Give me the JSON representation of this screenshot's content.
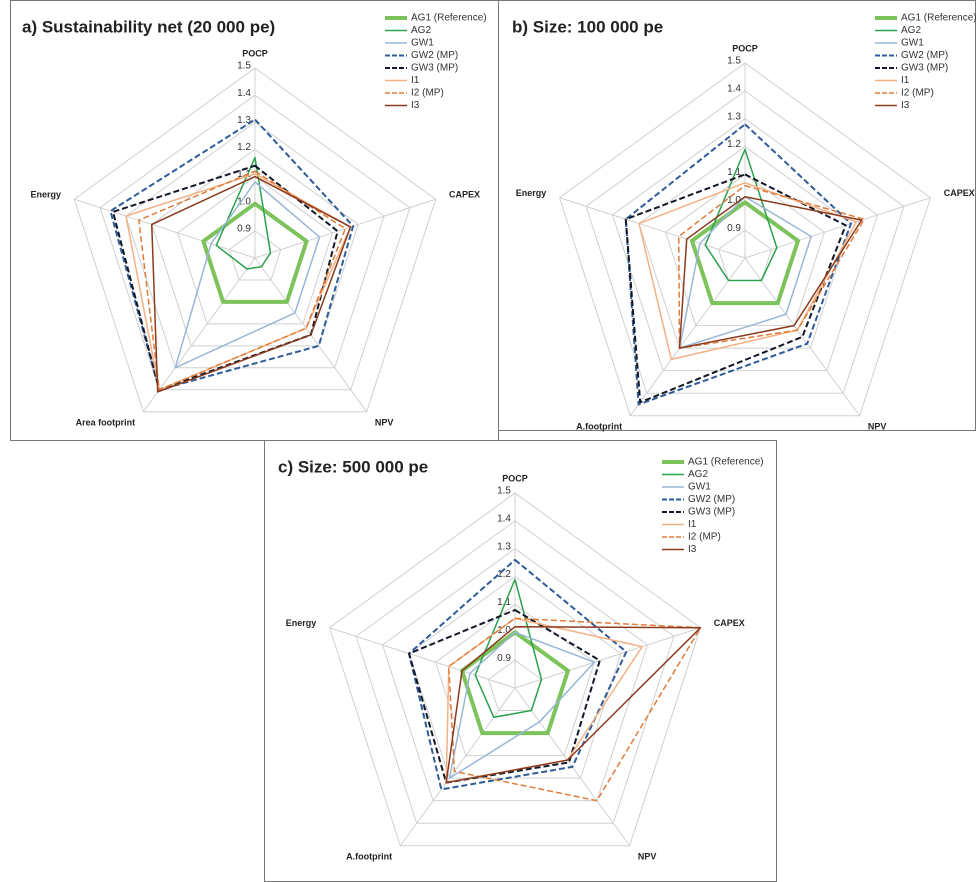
{
  "chart_data": [
    {
      "type": "radar",
      "title": "a) Sustainability net (20 000 pe)",
      "categories": [
        "POCP",
        "CAPEX",
        "NPV",
        "Area footprint",
        "Energy"
      ],
      "rlim": [
        0.8,
        1.5
      ],
      "rticks": [
        0.9,
        {
          "value": 1,
          "label": "1.0"
        },
        1.1,
        1.2,
        1.3,
        1.4,
        1.5
      ],
      "series": [
        {
          "name": "AG1 (Reference)",
          "color": "#7cc35b",
          "width": 4,
          "dashed": false,
          "values": [
            1,
            1,
            1,
            1,
            1
          ]
        },
        {
          "name": "AG2",
          "color": "#2ba24c",
          "width": 1.5,
          "dashed": false,
          "values": [
            1.17,
            0.86,
            0.84,
            0.85,
            0.95
          ]
        },
        {
          "name": "GW1",
          "color": "#9ab6d6",
          "width": 1.5,
          "dashed": false,
          "values": [
            1.08,
            1.05,
            1.05,
            1.3,
            0.97
          ]
        },
        {
          "name": "GW2 (MP)",
          "color": "#2f5c99",
          "width": 2,
          "dashed": true,
          "values": [
            1.31,
            1.18,
            1.2,
            1.4,
            1.36
          ]
        },
        {
          "name": "GW3 (MP)",
          "color": "#111827",
          "width": 2,
          "dashed": true,
          "values": [
            1.14,
            1.12,
            1.15,
            1.4,
            1.35
          ]
        },
        {
          "name": "I1",
          "color": "#f4b183",
          "width": 1.5,
          "dashed": false,
          "values": [
            1.11,
            1.17,
            1.12,
            1.4,
            1.3
          ]
        },
        {
          "name": "I2 (MP)",
          "color": "#e07b39",
          "width": 1.5,
          "dashed": true,
          "values": [
            1.12,
            1.15,
            1.12,
            1.4,
            1.25
          ]
        },
        {
          "name": "I3",
          "color": "#8b3a1e",
          "width": 1.5,
          "dashed": false,
          "values": [
            1.1,
            1.17,
            1.15,
            1.41,
            1.2
          ]
        }
      ]
    },
    {
      "type": "radar",
      "title": "b) Size: 100 000 pe",
      "categories": [
        "POCP",
        "CAPEX",
        "NPV",
        "A.footprint",
        "Energy"
      ],
      "rlim": [
        0.8,
        1.5
      ],
      "rticks": [
        0.9,
        {
          "value": 1,
          "label": "1.0"
        },
        1.1,
        1.2,
        1.3,
        1.4,
        1.5
      ],
      "series": [
        {
          "name": "AG1 (Reference)",
          "color": "#7cc35b",
          "width": 4,
          "dashed": false,
          "values": [
            1,
            1,
            1,
            1,
            1
          ]
        },
        {
          "name": "AG2",
          "color": "#2ba24c",
          "width": 1.5,
          "dashed": false,
          "values": [
            1.19,
            0.92,
            0.9,
            0.9,
            0.95
          ]
        },
        {
          "name": "GW1",
          "color": "#9ab6d6",
          "width": 1.5,
          "dashed": false,
          "values": [
            1.02,
            1.05,
            1.05,
            1.2,
            0.97
          ]
        },
        {
          "name": "GW2 (MP)",
          "color": "#2f5c99",
          "width": 2,
          "dashed": true,
          "values": [
            1.28,
            1.2,
            1.18,
            1.45,
            1.25
          ]
        },
        {
          "name": "GW3 (MP)",
          "color": "#111827",
          "width": 2,
          "dashed": true,
          "values": [
            1.1,
            1.18,
            1.15,
            1.44,
            1.25
          ]
        },
        {
          "name": "I1",
          "color": "#f4b183",
          "width": 1.5,
          "dashed": false,
          "values": [
            1.07,
            1.22,
            1.12,
            1.25,
            1.2
          ]
        },
        {
          "name": "I2 (MP)",
          "color": "#e07b39",
          "width": 1.5,
          "dashed": true,
          "values": [
            1.06,
            1.25,
            1.12,
            1.2,
            1.05
          ]
        },
        {
          "name": "I3",
          "color": "#8b3a1e",
          "width": 1.5,
          "dashed": false,
          "values": [
            1.02,
            1.24,
            1.1,
            1.2,
            1.02
          ]
        }
      ]
    },
    {
      "type": "radar",
      "title": "c) Size: 500 000 pe",
      "categories": [
        "POCP",
        "CAPEX",
        "NPV",
        "A.footprint",
        "Energy"
      ],
      "rlim": [
        0.8,
        1.5
      ],
      "rticks": [
        0.9,
        {
          "value": 1,
          "label": "1.0"
        },
        1.1,
        1.2,
        1.3,
        1.4,
        1.5
      ],
      "series": [
        {
          "name": "AG1 (Reference)",
          "color": "#7cc35b",
          "width": 4,
          "dashed": false,
          "values": [
            1,
            1,
            1,
            1,
            1
          ]
        },
        {
          "name": "AG2",
          "color": "#2ba24c",
          "width": 1.5,
          "dashed": false,
          "values": [
            1.19,
            0.9,
            0.9,
            0.93,
            0.95
          ]
        },
        {
          "name": "GW1",
          "color": "#9ab6d6",
          "width": 1.5,
          "dashed": false,
          "values": [
            1.0,
            1.1,
            0.95,
            1.2,
            0.97
          ]
        },
        {
          "name": "GW2 (MP)",
          "color": "#2f5c99",
          "width": 2,
          "dashed": true,
          "values": [
            1.26,
            1.22,
            1.15,
            1.25,
            1.2
          ]
        },
        {
          "name": "GW3 (MP)",
          "color": "#111827",
          "width": 2,
          "dashed": true,
          "values": [
            1.08,
            1.12,
            1.13,
            1.22,
            1.2
          ]
        },
        {
          "name": "I1",
          "color": "#f4b183",
          "width": 1.5,
          "dashed": false,
          "values": [
            1.05,
            1.28,
            1.12,
            1.22,
            1.05
          ]
        },
        {
          "name": "I2 (MP)",
          "color": "#e07b39",
          "width": 1.5,
          "dashed": true,
          "values": [
            1.05,
            1.5,
            1.3,
            1.17,
            1.05
          ]
        },
        {
          "name": "I3",
          "color": "#8b3a1e",
          "width": 1.5,
          "dashed": false,
          "values": [
            1.02,
            1.5,
            1.12,
            1.22,
            1.0
          ]
        }
      ]
    }
  ]
}
